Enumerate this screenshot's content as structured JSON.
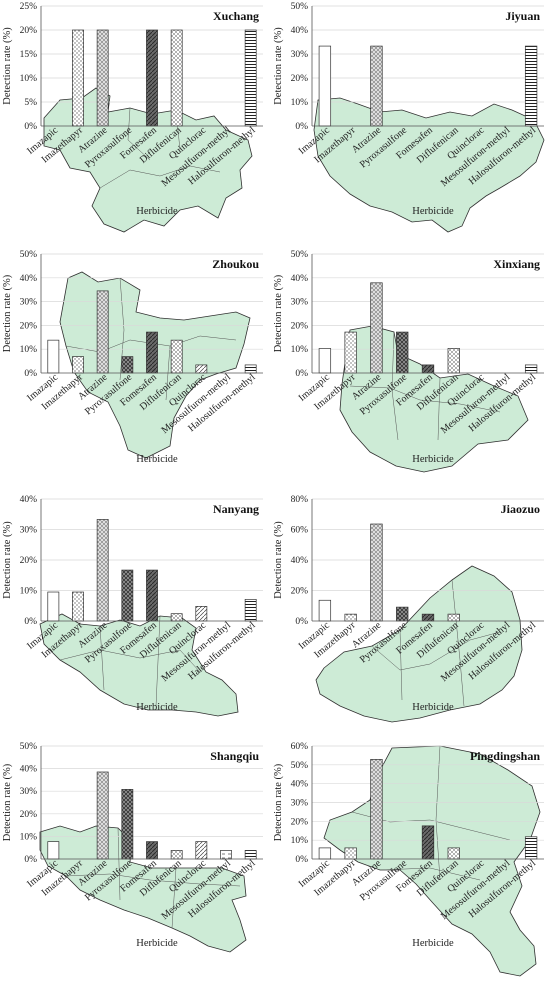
{
  "chart_data": [
    {
      "type": "bar",
      "title": "Xuchang",
      "ylabel": "Detection rate (%)",
      "xlabel": "Herbicide",
      "ylim": [
        0,
        25
      ],
      "yticks": [
        "0%",
        "5%",
        "10%",
        "15%",
        "20%",
        "25%"
      ],
      "categories": [
        "Imazapic",
        "Imazethapyr",
        "Atrazine",
        "Pyroxasulfone",
        "Fomesafen",
        "Diflufenican",
        "Quinclorac",
        "Mesosulfuron-methyl",
        "Halosulfuron-methyl"
      ],
      "values": [
        0,
        20,
        20,
        0,
        20,
        20,
        0,
        0,
        20
      ]
    },
    {
      "type": "bar",
      "title": "Jiyuan",
      "ylabel": "Detection rate (%)",
      "xlabel": "Herbicide",
      "ylim": [
        0,
        50
      ],
      "yticks": [
        "0%",
        "10%",
        "20%",
        "30%",
        "40%",
        "50%"
      ],
      "categories": [
        "Imazapic",
        "Imazethapyr",
        "Atrazine",
        "Pyroxasulfone",
        "Fomesafen",
        "Diflufenican",
        "Quinclorac",
        "Mesosulfuron-methyl",
        "Halosulfuron-methyl"
      ],
      "values": [
        33.3,
        0,
        33.3,
        0,
        0,
        0,
        0,
        0,
        33.3
      ]
    },
    {
      "type": "bar",
      "title": "Zhoukou",
      "ylabel": "Detection rate (%)",
      "xlabel": "Herbicide",
      "ylim": [
        0,
        50
      ],
      "yticks": [
        "0%",
        "10%",
        "20%",
        "30%",
        "40%",
        "50%"
      ],
      "categories": [
        "Imazapic",
        "Imazethapyr",
        "Atrazine",
        "Pyroxasulfone",
        "Fomesafen",
        "Diflufenican",
        "Quinclorac",
        "Mesosulfuron-methyl",
        "Halosulfuron-methyl"
      ],
      "values": [
        13.8,
        6.9,
        34.5,
        6.9,
        17.2,
        13.8,
        3.4,
        0,
        3.4
      ]
    },
    {
      "type": "bar",
      "title": "Xinxiang",
      "ylabel": "Detection rate (%)",
      "xlabel": "Herbicide",
      "ylim": [
        0,
        50
      ],
      "yticks": [
        "0%",
        "10%",
        "20%",
        "30%",
        "40%",
        "50%"
      ],
      "categories": [
        "Imazapic",
        "Imazethapyr",
        "Atrazine",
        "Pyroxasulfone",
        "Fomesafen",
        "Diflufenican",
        "Quinclorac",
        "Mesosulfuron-methyl",
        "Halosulfuron-methyl"
      ],
      "values": [
        10.3,
        17.2,
        37.9,
        17.2,
        3.4,
        10.3,
        0,
        0,
        3.4
      ]
    },
    {
      "type": "bar",
      "title": "Nanyang",
      "ylabel": "Detection rate (%)",
      "xlabel": "Herbicide",
      "ylim": [
        0,
        40
      ],
      "yticks": [
        "0%",
        "10%",
        "20%",
        "30%",
        "40%"
      ],
      "categories": [
        "Imazapic",
        "Imazethapyr",
        "Atrazine",
        "Pyroxasulfone",
        "Fomesafen",
        "Diflufenican",
        "Quinclorac",
        "Mesosulfuron-methyl",
        "Halosulfuron-methyl"
      ],
      "values": [
        9.5,
        9.5,
        33.3,
        16.7,
        16.7,
        2.4,
        4.8,
        0,
        7.1
      ]
    },
    {
      "type": "bar",
      "title": "Jiaozuo",
      "ylabel": "Detection rate (%)",
      "xlabel": "Herbicide",
      "ylim": [
        0,
        80
      ],
      "yticks": [
        "0%",
        "20%",
        "40%",
        "60%",
        "80%"
      ],
      "categories": [
        "Imazapic",
        "Imazethapyr",
        "Atrazine",
        "Pyroxasulfone",
        "Fomesafen",
        "Diflufenican",
        "Quinclorac",
        "Mesosulfuron-methyl",
        "Halosulfuron-methyl"
      ],
      "values": [
        13.6,
        4.5,
        63.6,
        9.1,
        4.5,
        4.5,
        0,
        0,
        0
      ]
    },
    {
      "type": "bar",
      "title": "Shangqiu",
      "ylabel": "Detection rate (%)",
      "xlabel": "Herbicide",
      "ylim": [
        0,
        50
      ],
      "yticks": [
        "0%",
        "10%",
        "20%",
        "30%",
        "40%",
        "50%"
      ],
      "categories": [
        "Imazapic",
        "Imazethapyr",
        "Atrazine",
        "Pyroxasulfone",
        "Fomesafen",
        "Diflufenican",
        "Quinclorac",
        "Mesosulfuron-methyl",
        "Halosulfuron-methyl"
      ],
      "values": [
        7.7,
        0,
        38.5,
        30.8,
        7.7,
        3.8,
        7.7,
        3.8,
        3.8
      ]
    },
    {
      "type": "bar",
      "title": "Pingdingshan",
      "ylabel": "Detection rate (%)",
      "xlabel": "Herbicide",
      "ylim": [
        0,
        60
      ],
      "yticks": [
        "0%",
        "10%",
        "20%",
        "30%",
        "40%",
        "50%",
        "60%"
      ],
      "categories": [
        "Imazapic",
        "Imazethapyr",
        "Atrazine",
        "Pyroxasulfone",
        "Fomesafen",
        "Diflufenican",
        "Quinclorac",
        "Mesosulfuron-methyl",
        "Halosulfuron-methyl"
      ],
      "values": [
        5.9,
        5.9,
        52.9,
        0,
        17.6,
        5.9,
        0,
        0,
        11.8
      ]
    }
  ],
  "bar_styles": [
    "open",
    "dotted",
    "cross-hatched",
    "dark-grid",
    "dark-diagonal",
    "grid",
    "diagonal",
    "dashed",
    "horizontal"
  ]
}
